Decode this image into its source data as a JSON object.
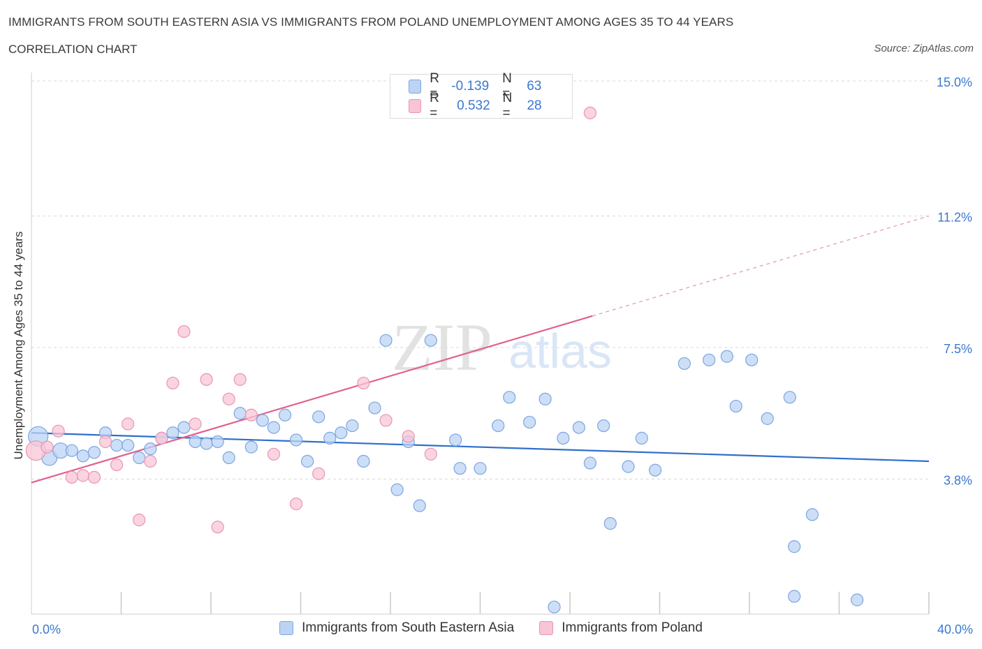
{
  "title": "IMMIGRANTS FROM SOUTH EASTERN ASIA VS IMMIGRANTS FROM POLAND UNEMPLOYMENT AMONG AGES 35 TO 44 YEARS",
  "subtitle": "CORRELATION CHART",
  "source": "Source: ZipAtlas.com",
  "watermark": {
    "zip": "ZIP",
    "atlas": "atlas"
  },
  "colors": {
    "blue": "#3f7fd4",
    "blue_fill": "#bcd3f4",
    "pink": "#e0608e",
    "pink_fill": "#f8c5d6",
    "grid": "#d8d8d8",
    "axis_text": "#3a78d0"
  },
  "legend_top": {
    "rows": [
      {
        "r_label": "R =",
        "r_value": "-0.139",
        "n_label": "N =",
        "n_value": "63"
      },
      {
        "r_label": "R =",
        "r_value": "0.532",
        "n_label": "N =",
        "n_value": "28"
      }
    ]
  },
  "legend_bottom": {
    "series_1": "Immigrants from South Eastern Asia",
    "series_2": "Immigrants from Poland"
  },
  "chart_data": {
    "type": "scatter",
    "title": "IMMIGRANTS FROM SOUTH EASTERN ASIA VS IMMIGRANTS FROM POLAND UNEMPLOYMENT AMONG AGES 35 TO 44 YEARS",
    "subtitle": "CORRELATION CHART",
    "xlabel": "",
    "ylabel": "Unemployment Among Ages 35 to 44 years",
    "xlim": [
      0,
      40
    ],
    "ylim": [
      0,
      15
    ],
    "x_tick_labels": [
      "0.0%",
      "40.0%"
    ],
    "y_ticks": [
      3.8,
      7.5,
      11.2,
      15.0
    ],
    "y_tick_labels": [
      "3.8%",
      "7.5%",
      "11.2%",
      "15.0%"
    ],
    "grid": true,
    "legend": "top-center",
    "series": [
      {
        "name": "Immigrants from South Eastern Asia",
        "R": -0.139,
        "N": 63,
        "trend": {
          "x": [
            0,
            40
          ],
          "y": [
            5.1,
            4.3
          ]
        },
        "points": [
          {
            "x": 0.3,
            "y": 5.0,
            "s": "L"
          },
          {
            "x": 0.8,
            "y": 4.4,
            "s": "M"
          },
          {
            "x": 1.3,
            "y": 4.6,
            "s": "M"
          },
          {
            "x": 1.8,
            "y": 4.6
          },
          {
            "x": 2.3,
            "y": 4.45
          },
          {
            "x": 2.8,
            "y": 4.55
          },
          {
            "x": 3.3,
            "y": 5.1
          },
          {
            "x": 3.8,
            "y": 4.75
          },
          {
            "x": 4.3,
            "y": 4.75
          },
          {
            "x": 4.8,
            "y": 4.4
          },
          {
            "x": 5.3,
            "y": 4.65
          },
          {
            "x": 5.8,
            "y": 4.95
          },
          {
            "x": 6.3,
            "y": 5.1
          },
          {
            "x": 6.8,
            "y": 5.25
          },
          {
            "x": 7.3,
            "y": 4.85
          },
          {
            "x": 7.8,
            "y": 4.8
          },
          {
            "x": 8.3,
            "y": 4.85
          },
          {
            "x": 8.8,
            "y": 4.4
          },
          {
            "x": 9.3,
            "y": 5.65
          },
          {
            "x": 9.8,
            "y": 4.7
          },
          {
            "x": 10.3,
            "y": 5.45
          },
          {
            "x": 10.8,
            "y": 5.25
          },
          {
            "x": 11.3,
            "y": 5.6
          },
          {
            "x": 11.8,
            "y": 4.9
          },
          {
            "x": 12.3,
            "y": 4.3
          },
          {
            "x": 12.8,
            "y": 5.55
          },
          {
            "x": 13.3,
            "y": 4.95
          },
          {
            "x": 13.8,
            "y": 5.1
          },
          {
            "x": 14.3,
            "y": 5.3
          },
          {
            "x": 14.8,
            "y": 4.3
          },
          {
            "x": 15.3,
            "y": 5.8
          },
          {
            "x": 15.8,
            "y": 7.7
          },
          {
            "x": 16.3,
            "y": 3.5
          },
          {
            "x": 16.8,
            "y": 4.85
          },
          {
            "x": 17.3,
            "y": 3.05
          },
          {
            "x": 17.8,
            "y": 7.7
          },
          {
            "x": 18.9,
            "y": 4.9
          },
          {
            "x": 19.1,
            "y": 4.1
          },
          {
            "x": 20.0,
            "y": 4.1
          },
          {
            "x": 20.8,
            "y": 5.3
          },
          {
            "x": 21.3,
            "y": 6.1
          },
          {
            "x": 22.2,
            "y": 5.4
          },
          {
            "x": 22.9,
            "y": 6.05
          },
          {
            "x": 23.3,
            "y": 0.2
          },
          {
            "x": 23.7,
            "y": 4.95
          },
          {
            "x": 24.4,
            "y": 5.25
          },
          {
            "x": 24.9,
            "y": 4.25
          },
          {
            "x": 25.5,
            "y": 5.3
          },
          {
            "x": 25.8,
            "y": 2.55
          },
          {
            "x": 26.6,
            "y": 4.15
          },
          {
            "x": 27.2,
            "y": 4.95
          },
          {
            "x": 27.8,
            "y": 4.05
          },
          {
            "x": 29.1,
            "y": 7.05
          },
          {
            "x": 30.2,
            "y": 7.15
          },
          {
            "x": 31.0,
            "y": 7.25
          },
          {
            "x": 31.4,
            "y": 5.85
          },
          {
            "x": 32.1,
            "y": 7.15
          },
          {
            "x": 32.8,
            "y": 5.5
          },
          {
            "x": 33.8,
            "y": 6.1
          },
          {
            "x": 34.0,
            "y": 1.9
          },
          {
            "x": 34.0,
            "y": 0.5
          },
          {
            "x": 34.8,
            "y": 2.8
          },
          {
            "x": 36.8,
            "y": 0.4
          }
        ]
      },
      {
        "name": "Immigrants from Poland",
        "R": 0.532,
        "N": 28,
        "trend": {
          "x": [
            0,
            40
          ],
          "y": [
            3.7,
            11.2
          ],
          "solid_until_x": 25
        },
        "points": [
          {
            "x": 0.2,
            "y": 4.6,
            "s": "L"
          },
          {
            "x": 0.7,
            "y": 4.7
          },
          {
            "x": 1.2,
            "y": 5.15
          },
          {
            "x": 1.8,
            "y": 3.85
          },
          {
            "x": 2.3,
            "y": 3.9
          },
          {
            "x": 2.8,
            "y": 3.85
          },
          {
            "x": 3.3,
            "y": 4.85
          },
          {
            "x": 3.8,
            "y": 4.2
          },
          {
            "x": 4.3,
            "y": 5.35
          },
          {
            "x": 4.8,
            "y": 2.65
          },
          {
            "x": 5.3,
            "y": 4.3
          },
          {
            "x": 5.8,
            "y": 4.95
          },
          {
            "x": 6.3,
            "y": 6.5
          },
          {
            "x": 6.8,
            "y": 7.95
          },
          {
            "x": 7.3,
            "y": 5.35
          },
          {
            "x": 7.8,
            "y": 6.6
          },
          {
            "x": 8.3,
            "y": 2.45
          },
          {
            "x": 8.8,
            "y": 6.05
          },
          {
            "x": 9.3,
            "y": 6.6
          },
          {
            "x": 9.8,
            "y": 5.6
          },
          {
            "x": 10.8,
            "y": 4.5
          },
          {
            "x": 11.8,
            "y": 3.1
          },
          {
            "x": 12.8,
            "y": 3.95
          },
          {
            "x": 14.8,
            "y": 6.5
          },
          {
            "x": 15.8,
            "y": 5.45
          },
          {
            "x": 16.8,
            "y": 5.0
          },
          {
            "x": 17.8,
            "y": 4.5
          },
          {
            "x": 24.9,
            "y": 14.1
          }
        ]
      }
    ]
  }
}
